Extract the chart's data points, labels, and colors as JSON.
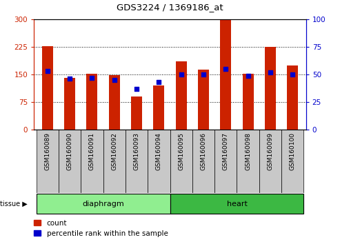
{
  "title": "GDS3224 / 1369186_at",
  "samples": [
    "GSM160089",
    "GSM160090",
    "GSM160091",
    "GSM160092",
    "GSM160093",
    "GSM160094",
    "GSM160095",
    "GSM160096",
    "GSM160097",
    "GSM160098",
    "GSM160099",
    "GSM160100"
  ],
  "counts": [
    228,
    140,
    152,
    148,
    90,
    120,
    185,
    163,
    298,
    152,
    225,
    175
  ],
  "percentiles": [
    53,
    46,
    47,
    45,
    37,
    43,
    50,
    50,
    55,
    49,
    52,
    50
  ],
  "tissue_groups": [
    {
      "label": "diaphragm",
      "start": 0,
      "end": 6,
      "color": "#90EE90"
    },
    {
      "label": "heart",
      "start": 6,
      "end": 12,
      "color": "#3CB843"
    }
  ],
  "bar_color": "#CC2200",
  "percentile_color": "#0000CC",
  "left_ylim": [
    0,
    300
  ],
  "right_ylim": [
    0,
    100
  ],
  "left_yticks": [
    0,
    75,
    150,
    225,
    300
  ],
  "right_yticks": [
    0,
    25,
    50,
    75,
    100
  ],
  "left_ycolor": "#CC2200",
  "right_ycolor": "#0000CC",
  "tick_label_area_color": "#C8C8C8",
  "legend_count_label": "count",
  "legend_percentile_label": "percentile rank within the sample",
  "tissue_label": "tissue",
  "bar_width": 0.5
}
